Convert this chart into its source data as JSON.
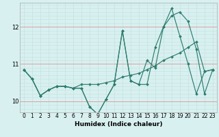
{
  "xlabel": "Humidex (Indice chaleur)",
  "xlim": [
    -0.5,
    23.5
  ],
  "ylim": [
    9.7,
    12.65
  ],
  "yticks": [
    10,
    11,
    12
  ],
  "xticks": [
    0,
    1,
    2,
    3,
    4,
    5,
    6,
    7,
    8,
    9,
    10,
    11,
    12,
    13,
    14,
    15,
    16,
    17,
    18,
    19,
    20,
    21,
    22,
    23
  ],
  "bg_color": "#d8f0f0",
  "grid_color_v": "#c8e4e4",
  "grid_color_h": "#e08080",
  "line_color": "#2e7d6e",
  "series": [
    [
      10.85,
      10.6,
      10.15,
      10.3,
      10.4,
      10.4,
      10.35,
      10.35,
      9.85,
      9.65,
      10.05,
      10.45,
      11.9,
      10.55,
      10.45,
      11.1,
      10.9,
      12.0,
      12.5,
      11.75,
      11.0,
      10.2,
      10.8,
      10.85
    ],
    [
      10.85,
      10.6,
      10.15,
      10.3,
      10.4,
      10.4,
      10.35,
      10.45,
      10.45,
      10.45,
      10.5,
      10.55,
      10.65,
      10.7,
      10.75,
      10.85,
      10.95,
      11.1,
      11.2,
      11.3,
      11.45,
      11.6,
      10.8,
      10.85
    ],
    [
      10.85,
      10.6,
      10.15,
      10.3,
      10.4,
      10.4,
      10.35,
      10.35,
      9.85,
      9.65,
      10.05,
      10.45,
      11.9,
      10.55,
      10.45,
      10.45,
      11.45,
      12.0,
      12.3,
      12.4,
      12.15,
      11.4,
      10.2,
      10.85
    ]
  ],
  "xlabel_fontsize": 6.5,
  "tick_fontsize": 5.5
}
